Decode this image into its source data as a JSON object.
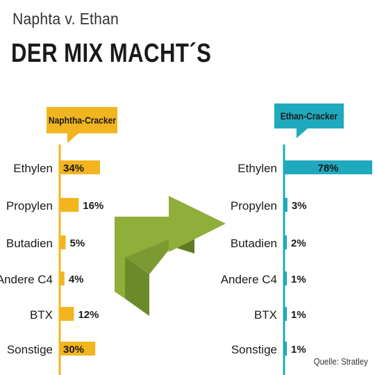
{
  "header": {
    "subtitle": "Naphta v. Ethan",
    "title": "DER MIX MACHT´S"
  },
  "source": "Quelle: Stratley",
  "colors": {
    "naphtha": "#f2b51f",
    "ethan": "#1fa9bd",
    "arrow_light": "#8fae3a",
    "arrow_dark": "#6b8a2a"
  },
  "icons": {
    "arrow": "folded-arrow-icon"
  },
  "chart_data": [
    {
      "type": "bar",
      "orientation": "horizontal",
      "title": "Naphtha-Cracker",
      "categories": [
        "Ethylen",
        "Propylen",
        "Butadien",
        "Andere C4",
        "BTX",
        "Sonstige"
      ],
      "values": [
        34,
        16,
        5,
        4,
        12,
        30
      ],
      "value_labels": [
        "34%",
        "16%",
        "5%",
        "4%",
        "12%",
        "30%"
      ],
      "xlim": [
        0,
        78
      ]
    },
    {
      "type": "bar",
      "orientation": "horizontal",
      "title": "Ethan-Cracker",
      "categories": [
        "Ethylen",
        "Propylen",
        "Butadien",
        "Andere C4",
        "BTX",
        "Sonstige"
      ],
      "values": [
        78,
        3,
        2,
        1,
        1,
        1
      ],
      "value_labels": [
        "78%",
        "3%",
        "2%",
        "1%",
        "1%",
        "1%"
      ],
      "xlim": [
        0,
        78
      ]
    }
  ]
}
